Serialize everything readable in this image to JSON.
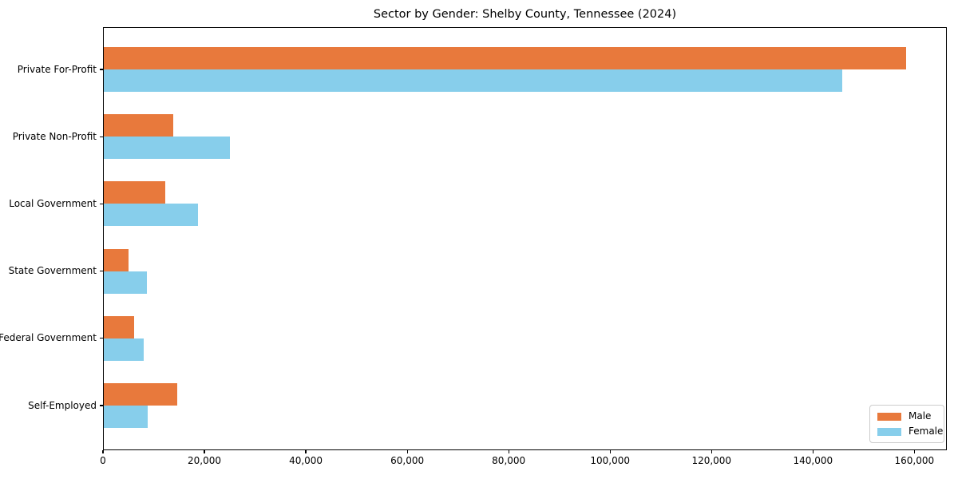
{
  "chart_data": {
    "type": "bar",
    "orientation": "horizontal",
    "title": "Sector by Gender: Shelby County, Tennessee (2024)",
    "categories": [
      "Private For-Profit",
      "Private Non-Profit",
      "Local Government",
      "State Government",
      "Federal Government",
      "Self-Employed"
    ],
    "series": [
      {
        "name": "Male",
        "color": "#E8793C",
        "values": [
          158400,
          13800,
          12300,
          5000,
          6100,
          14700
        ]
      },
      {
        "name": "Female",
        "color": "#87CEEB",
        "values": [
          145700,
          25100,
          18800,
          8600,
          8100,
          8800
        ]
      }
    ],
    "xlabel": "",
    "ylabel": "",
    "xlim": [
      0,
      166400
    ],
    "x_ticks": [
      0,
      20000,
      40000,
      60000,
      80000,
      100000,
      120000,
      140000,
      160000
    ],
    "x_tick_labels": [
      "0",
      "20,000",
      "40,000",
      "60,000",
      "80,000",
      "100,000",
      "120,000",
      "140,000",
      "160,000"
    ],
    "grid": false,
    "legend": {
      "position": "lower right",
      "entries": [
        "Male",
        "Female"
      ]
    }
  }
}
